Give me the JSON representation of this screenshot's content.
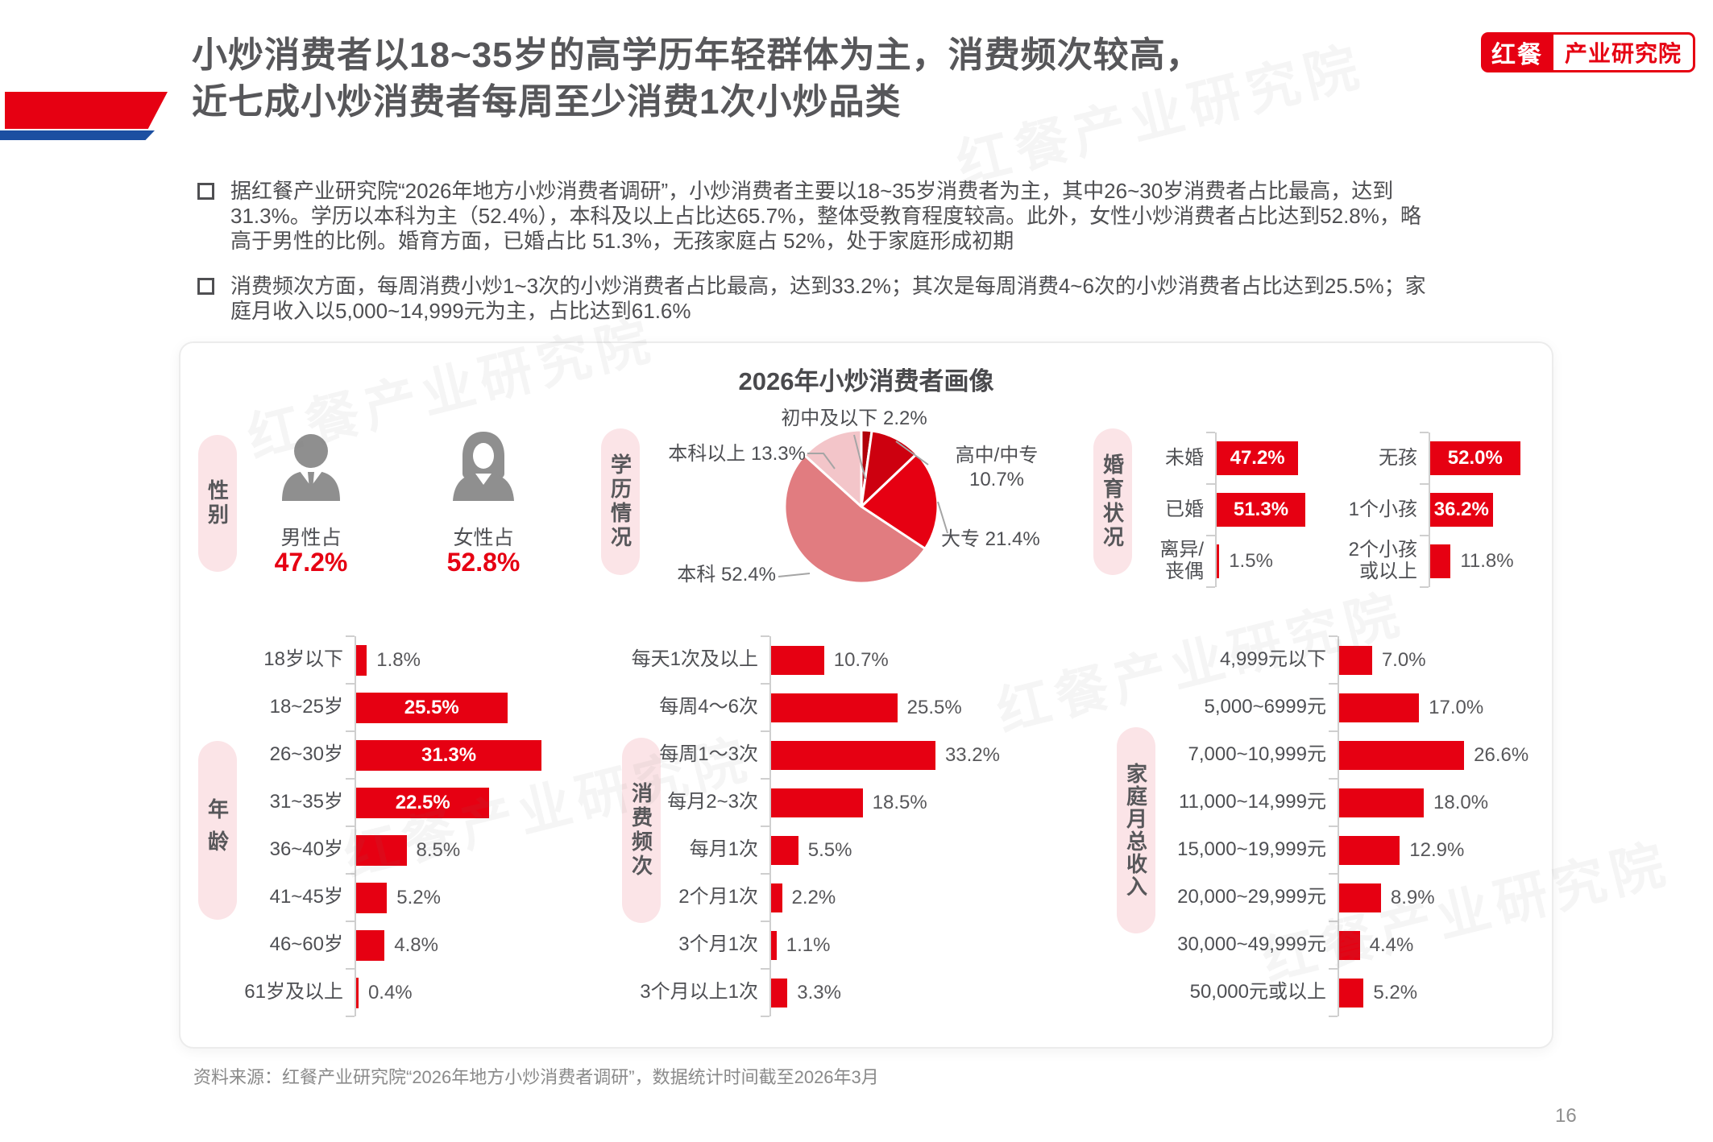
{
  "header": {
    "title_lines": "小炒消费者以18~35岁的高学历年轻群体为主，消费频次较高，\n近七成小炒消费者每周至少消费1次小炒品类",
    "logo": {
      "brand": "红餐",
      "unit": "产业研究院"
    }
  },
  "bullets": [
    "据红餐产业研究院“2026年地方小炒消费者调研”，小炒消费者主要以18~35岁消费者为主，其中26~30岁消费者占比最高，达到\n31.3%。学历以本科为主（52.4%），本科及以上占比达65.7%，整体受教育程度较高。此外，女性小炒消费者占比达到52.8%，略\n高于男性的比例。婚育方面，已婚占比 51.3%，无孩家庭占 52%，处于家庭形成初期",
    "消费频次方面，每周消费小炒1~3次的小炒消费者占比最高，达到33.2%；其次是每周消费4~6次的小炒消费者占比达到25.5%；家\n庭月收入以5,000~14,999元为主，占比达到61.6%"
  ],
  "card_title": "2026年小炒消费者画像",
  "watermark_text": "红餐产业研究院",
  "source_note": "资料来源：红餐产业研究院“2026年地方小炒消费者调研”，数据统计时间截至2026年3月",
  "page_number": "16",
  "colors": {
    "accent_red": "#E60012",
    "accent_blue": "#1C4FA1",
    "bar_red": "#E60012",
    "pill_pink": "#FBE4E7"
  },
  "chart_data": [
    {
      "id": "gender",
      "type": "pictogram",
      "section_label": "性别",
      "items": [
        {
          "icon": "male-icon",
          "label": "男性占",
          "value": 47.2
        },
        {
          "icon": "female-icon",
          "label": "女性占",
          "value": 52.8
        }
      ]
    },
    {
      "id": "education",
      "type": "pie",
      "section_label": "学历情况",
      "start_angle_deg": 0,
      "direction": "clockwise",
      "slices": [
        {
          "label": "初中及以下",
          "value": 2.2,
          "color": "#B1000A"
        },
        {
          "label": "高中/中专",
          "value": 10.7,
          "color": "#CD000F"
        },
        {
          "label": "大专",
          "value": 21.4,
          "color": "#E60012"
        },
        {
          "label": "本科",
          "value": 52.4,
          "color": "#E17C80"
        },
        {
          "label": "本科以上",
          "value": 13.3,
          "color": "#F3C5C9"
        }
      ]
    },
    {
      "id": "marital",
      "type": "bar",
      "section_label": "婚育状况",
      "xlim": [
        0,
        55
      ],
      "values_inside_min": 20,
      "groups": [
        {
          "categories": [
            "未婚",
            "已婚",
            "离异/\n丧偶"
          ],
          "values": [
            47.2,
            51.3,
            1.5
          ]
        },
        {
          "categories": [
            "无孩",
            "1个小孩",
            "2个小孩\n或以上"
          ],
          "values": [
            52.0,
            36.2,
            11.8
          ]
        }
      ]
    },
    {
      "id": "age",
      "type": "bar",
      "section_label": "年龄",
      "xlim": [
        0,
        34
      ],
      "values_inside_min": 20,
      "categories": [
        "18岁以下",
        "18~25岁",
        "26~30岁",
        "31~35岁",
        "36~40岁",
        "41~45岁",
        "46~60岁",
        "61岁及以上"
      ],
      "values": [
        1.8,
        25.5,
        31.3,
        22.5,
        8.5,
        5.2,
        4.8,
        0.4
      ]
    },
    {
      "id": "frequency",
      "type": "bar",
      "section_label": "消费频次",
      "xlim": [
        0,
        35
      ],
      "values_inside_min": 1000,
      "categories": [
        "每天1次及以上",
        "每周4～6次",
        "每周1～3次",
        "每月2~3次",
        "每月1次",
        "2个月1次",
        "3个月1次",
        "3个月以上1次"
      ],
      "values": [
        10.7,
        25.5,
        33.2,
        18.5,
        5.5,
        2.2,
        1.1,
        3.3
      ]
    },
    {
      "id": "income",
      "type": "bar",
      "section_label": "家庭月总收入",
      "xlim": [
        0,
        30
      ],
      "values_inside_min": 1000,
      "categories": [
        "4,999元以下",
        "5,000~6999元",
        "7,000~10,999元",
        "11,000~14,999元",
        "15,000~19,999元",
        "20,000~29,999元",
        "30,000~49,999元",
        "50,000元或以上"
      ],
      "values": [
        7.0,
        17.0,
        26.6,
        18.0,
        12.9,
        8.9,
        4.4,
        5.2
      ]
    }
  ]
}
